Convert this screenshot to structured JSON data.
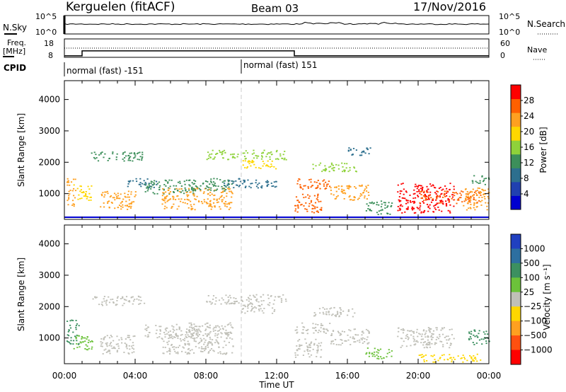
{
  "header": {
    "station": "Kerguelen (fitACF)",
    "beam": "Beam 03",
    "date": "17/Nov/2016"
  },
  "noise_panel": {
    "left_label": "N.Sky",
    "right_label": "N.Search",
    "tick_top": "10^5",
    "tick_bottom": "10^0"
  },
  "freq_panel": {
    "left_label_1": "Freq.",
    "left_label_2": "[MHz]",
    "right_label": "Nave",
    "left_ticks": [
      "18",
      "8"
    ],
    "right_ticks": [
      "60",
      "0"
    ],
    "freq_series_mhz": [
      [
        0,
        8.8
      ],
      [
        1,
        11.5
      ],
      [
        13,
        11.5
      ],
      [
        13,
        8.8
      ],
      [
        24,
        8.8
      ]
    ],
    "nave_level": 20
  },
  "cpid": {
    "label": "CPID",
    "segments": [
      {
        "start_hr": 0,
        "text": "normal (fast) -151"
      },
      {
        "start_hr": 10,
        "text": "normal (fast) 151"
      }
    ]
  },
  "colors": {
    "power": [
      "#0000d0",
      "#2040b0",
      "#2d6f8e",
      "#3c8f5a",
      "#8fd23a",
      "#ffd700",
      "#ffa020",
      "#ff6000",
      "#ff0000"
    ],
    "velocity": [
      "#2040c0",
      "#2d6fa0",
      "#3c9060",
      "#6cc23a",
      "#c0c0b8",
      "#ffd700",
      "#ffa020",
      "#ff5010",
      "#ff0000"
    ]
  },
  "chart_data": [
    {
      "type": "heatmap",
      "name": "power",
      "xlabel": "",
      "ylabel": "Slant Range [km]",
      "xlim": [
        0,
        24
      ],
      "ylim": [
        180,
        4600
      ],
      "yticks": [
        "1000",
        "2000",
        "3000",
        "4000"
      ],
      "colorbar_label": "Power [dB]",
      "colorbar_ticks": [
        "4",
        "8",
        "12",
        "16",
        "20",
        "24",
        "28"
      ],
      "colorbar_range": [
        0,
        32
      ],
      "regions": [
        {
          "x0": 0.1,
          "x1": 0.6,
          "y0": 600,
          "y1": 1500,
          "v": 22
        },
        {
          "x0": 0.5,
          "x1": 1.5,
          "y0": 800,
          "y1": 1300,
          "v": 18
        },
        {
          "x0": 1.5,
          "x1": 4.5,
          "y0": 2050,
          "y1": 2350,
          "v": 14
        },
        {
          "x0": 2.0,
          "x1": 4.0,
          "y0": 500,
          "y1": 1100,
          "v": 24
        },
        {
          "x0": 3.5,
          "x1": 5.2,
          "y0": 1200,
          "y1": 1500,
          "v": 10
        },
        {
          "x0": 4.5,
          "x1": 7.5,
          "y0": 1000,
          "y1": 1450,
          "v": 12
        },
        {
          "x0": 5.5,
          "x1": 9.5,
          "y0": 500,
          "y1": 1200,
          "v": 24
        },
        {
          "x0": 7.0,
          "x1": 9.5,
          "y0": 1100,
          "y1": 1500,
          "v": 14
        },
        {
          "x0": 8.0,
          "x1": 12.5,
          "y0": 2100,
          "y1": 2400,
          "v": 16
        },
        {
          "x0": 10.0,
          "x1": 12.0,
          "y0": 1800,
          "y1": 2100,
          "v": 18
        },
        {
          "x0": 9.0,
          "x1": 12.0,
          "y0": 1200,
          "y1": 1500,
          "v": 10
        },
        {
          "x0": 13.0,
          "x1": 15.0,
          "y0": 1150,
          "y1": 1500,
          "v": 26
        },
        {
          "x0": 13.0,
          "x1": 14.5,
          "y0": 400,
          "y1": 1000,
          "v": 28
        },
        {
          "x0": 14.0,
          "x1": 16.5,
          "y0": 1700,
          "y1": 2000,
          "v": 16
        },
        {
          "x0": 15.0,
          "x1": 17.2,
          "y0": 800,
          "y1": 1300,
          "v": 24
        },
        {
          "x0": 16.0,
          "x1": 17.3,
          "y0": 2200,
          "y1": 2500,
          "v": 10
        },
        {
          "x0": 17.0,
          "x1": 18.5,
          "y0": 350,
          "y1": 800,
          "v": 12
        },
        {
          "x0": 18.8,
          "x1": 22.0,
          "y0": 400,
          "y1": 1350,
          "v": 30
        },
        {
          "x0": 20.0,
          "x1": 23.5,
          "y0": 700,
          "y1": 1100,
          "v": 26
        },
        {
          "x0": 22.5,
          "x1": 24.0,
          "y0": 500,
          "y1": 1200,
          "v": 22
        },
        {
          "x0": 23.0,
          "x1": 24.0,
          "y0": 1300,
          "y1": 1600,
          "v": 14
        }
      ]
    },
    {
      "type": "heatmap",
      "name": "velocity",
      "xlabel": "Time UT",
      "ylabel": "Slant Range [km]",
      "xlim": [
        0,
        24
      ],
      "ylim": [
        180,
        4600
      ],
      "xticks": [
        "00:00",
        "04:00",
        "08:00",
        "12:00",
        "16:00",
        "20:00",
        "00:00"
      ],
      "yticks": [
        "1000",
        "2000",
        "3000",
        "4000"
      ],
      "colorbar_label": "Velocity [m s⁻¹]",
      "colorbar_ticks": [
        "1000",
        "500",
        "100",
        "25",
        "−25",
        "−100",
        "−500",
        "−1000"
      ],
      "regions": [
        {
          "x0": 0.1,
          "x1": 0.8,
          "y0": 800,
          "y1": 1600,
          "v": "#3c9060"
        },
        {
          "x0": 0.5,
          "x1": 1.6,
          "y0": 600,
          "y1": 1100,
          "v": "#6cc23a"
        },
        {
          "x0": 1.5,
          "x1": 4.5,
          "y0": 2050,
          "y1": 2350,
          "v": "#c0c0b8"
        },
        {
          "x0": 2.0,
          "x1": 4.0,
          "y0": 500,
          "y1": 1100,
          "v": "#c0c0b8"
        },
        {
          "x0": 4.5,
          "x1": 7.5,
          "y0": 1000,
          "y1": 1450,
          "v": "#c0c0b8"
        },
        {
          "x0": 5.5,
          "x1": 9.5,
          "y0": 500,
          "y1": 1200,
          "v": "#c0c0b8"
        },
        {
          "x0": 7.0,
          "x1": 9.5,
          "y0": 1100,
          "y1": 1500,
          "v": "#c0c0b8"
        },
        {
          "x0": 8.0,
          "x1": 12.5,
          "y0": 2100,
          "y1": 2400,
          "v": "#c0c0b8"
        },
        {
          "x0": 10.0,
          "x1": 12.0,
          "y0": 1800,
          "y1": 2100,
          "v": "#c0c0b8"
        },
        {
          "x0": 13.0,
          "x1": 15.0,
          "y0": 1150,
          "y1": 1500,
          "v": "#c0c0b8"
        },
        {
          "x0": 13.0,
          "x1": 14.5,
          "y0": 400,
          "y1": 1000,
          "v": "#c0c0b8"
        },
        {
          "x0": 14.0,
          "x1": 16.5,
          "y0": 1700,
          "y1": 2000,
          "v": "#c0c0b8"
        },
        {
          "x0": 15.0,
          "x1": 17.2,
          "y0": 800,
          "y1": 1300,
          "v": "#c0c0b8"
        },
        {
          "x0": 17.0,
          "x1": 18.5,
          "y0": 350,
          "y1": 700,
          "v": "#6cc23a"
        },
        {
          "x0": 18.8,
          "x1": 22.0,
          "y0": 700,
          "y1": 1350,
          "v": "#c0c0b8"
        },
        {
          "x0": 20.0,
          "x1": 23.5,
          "y0": 250,
          "y1": 500,
          "v": "#ffd700"
        },
        {
          "x0": 22.8,
          "x1": 24.0,
          "y0": 800,
          "y1": 1300,
          "v": "#3c9060"
        }
      ]
    }
  ]
}
